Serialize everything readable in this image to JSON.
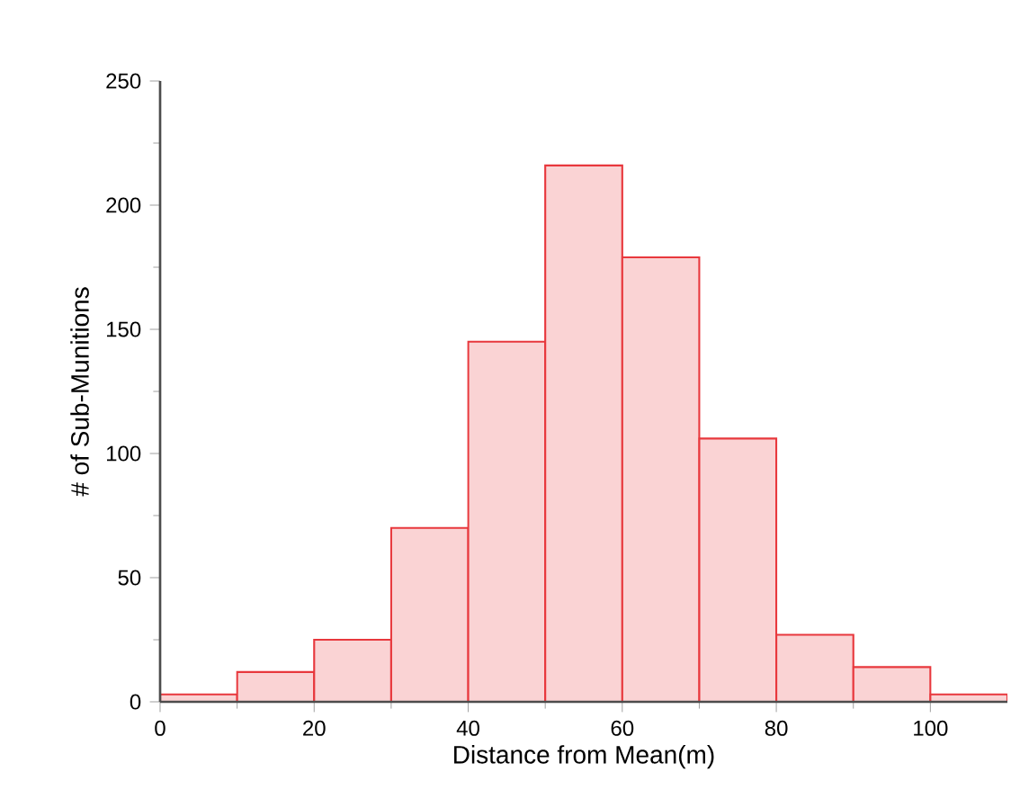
{
  "chart_data": {
    "type": "histogram",
    "xlabel": "Distance from Mean(m)",
    "ylabel": "# of Sub-Munitions",
    "bins": [
      0,
      10,
      20,
      30,
      40,
      50,
      60,
      70,
      80,
      90,
      100,
      110
    ],
    "values": [
      3,
      12,
      25,
      70,
      145,
      216,
      179,
      106,
      27,
      14,
      3
    ],
    "color": "#e8383d",
    "xlim": [
      0,
      110
    ],
    "xticks": [
      0,
      20,
      40,
      60,
      80,
      100
    ],
    "ylim": [
      0,
      250
    ],
    "yticks": [
      0,
      50,
      100,
      150,
      200,
      250
    ],
    "grid": false
  }
}
